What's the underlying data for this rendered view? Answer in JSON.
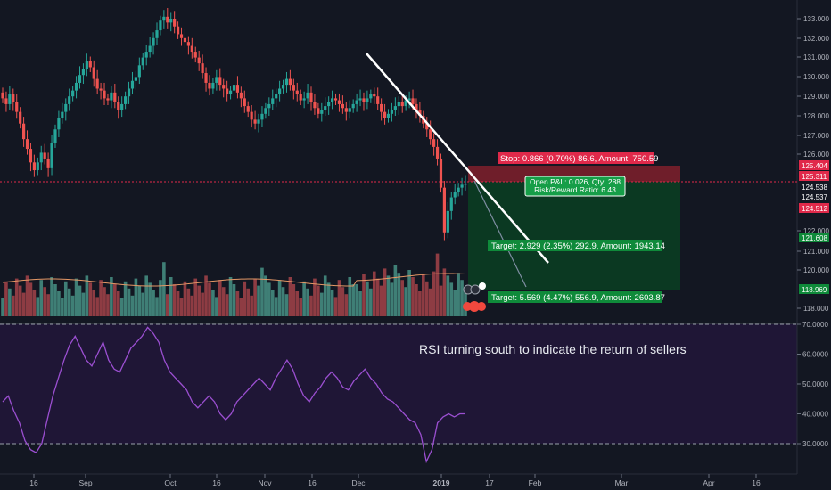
{
  "chart_data": [
    {
      "type": "candlestick",
      "title": "",
      "y_axis_ticks": [
        "133.000",
        "132.000",
        "131.000",
        "130.000",
        "129.000",
        "128.000",
        "127.000",
        "126.000",
        "122.000",
        "121.000",
        "120.000",
        "118.000"
      ],
      "price_labels": [
        {
          "text": "125.404",
          "color": "#e0294a"
        },
        {
          "text": "125.311",
          "color": "#e0294a"
        },
        {
          "text": "124.538",
          "color": "#131722"
        },
        {
          "text": "124.537",
          "color": "#131722"
        },
        {
          "text": "124.512",
          "color": "#e0294a"
        },
        {
          "text": "121.608",
          "color": "#0f8a3a"
        },
        {
          "text": "118.969",
          "color": "#0f8a3a"
        }
      ],
      "x_axis_ticks": [
        "16",
        "Sep",
        "Oct",
        "16",
        "Nov",
        "16",
        "Dec",
        "2019",
        "17",
        "Feb",
        "Mar",
        "Apr",
        "16"
      ],
      "closes": [
        128.9,
        128.6,
        129.1,
        128.7,
        128.2,
        127.6,
        126.8,
        126.3,
        125.6,
        125.2,
        125.6,
        126.1,
        125.8,
        125.3,
        126.6,
        127.3,
        127.9,
        128.2,
        128.6,
        129.0,
        129.3,
        129.7,
        130.1,
        130.4,
        130.8,
        130.5,
        129.9,
        129.4,
        129.3,
        128.9,
        128.8,
        129.2,
        128.7,
        128.3,
        128.6,
        129.0,
        129.4,
        129.8,
        130.0,
        130.6,
        131.0,
        131.3,
        131.6,
        132.0,
        132.4,
        132.9,
        133.1,
        132.8,
        133.0,
        132.6,
        132.2,
        132.0,
        131.8,
        131.6,
        131.3,
        131.0,
        130.7,
        130.2,
        129.7,
        129.4,
        129.7,
        130.0,
        129.6,
        129.4,
        129.1,
        129.3,
        129.6,
        129.2,
        128.9,
        128.5,
        128.2,
        127.8,
        127.6,
        127.8,
        128.1,
        128.4,
        128.6,
        128.9,
        129.1,
        129.4,
        129.6,
        129.9,
        129.6,
        129.3,
        129.1,
        128.8,
        128.9,
        129.2,
        128.7,
        128.4,
        128.1,
        128.3,
        128.5,
        128.7,
        128.9,
        128.8,
        128.6,
        128.4,
        128.2,
        128.4,
        128.6,
        128.8,
        128.9,
        128.7,
        128.9,
        129.1,
        129.0,
        128.6,
        128.2,
        127.9,
        128.1,
        128.3,
        128.5,
        128.7,
        128.5,
        128.8,
        128.9,
        128.6,
        128.3,
        128.0,
        127.6,
        127.3,
        126.8,
        126.4,
        125.8,
        124.3,
        122.0,
        123.1,
        123.8,
        124.1,
        124.3,
        124.45,
        124.5
      ],
      "volume_scale_note": "",
      "rsi_ticks": [
        "70.0000",
        "60.0000",
        "50.0000",
        "40.0000",
        "30.0000"
      ],
      "rsi_overbought": 70,
      "rsi_oversold": 30,
      "rsi_values": [
        44,
        46,
        41,
        37,
        31,
        28,
        27,
        30,
        38,
        46,
        52,
        58,
        63,
        66,
        62,
        58,
        56,
        60,
        64,
        58,
        55,
        54,
        58,
        62,
        64,
        66,
        69,
        67,
        64,
        58,
        54,
        52,
        50,
        48,
        44,
        42,
        44,
        46,
        44,
        40,
        38,
        40,
        44,
        46,
        48,
        50,
        52,
        50,
        48,
        52,
        55,
        58,
        55,
        50,
        46,
        44,
        47,
        49,
        52,
        54,
        52,
        49,
        48,
        51,
        53,
        55,
        52,
        50,
        47,
        45,
        44,
        42,
        40,
        38,
        37,
        33,
        24,
        28,
        37,
        39,
        40,
        39,
        40,
        40
      ],
      "annotation": "RSI turning south to indicate the return of sellers",
      "position_labels": {
        "stop": "Stop: 0.866 (0.70%) 86.6, Amount: 750.59",
        "open": "Open P&L: 0.026, Qty: 288",
        "rr": "Risk/Reward Ratio: 6.43",
        "target1": "Target: 2.929 (2.35%) 292.9, Amount: 1943.14",
        "target2": "Target: 5.569 (4.47%) 556.9, Amount: 2603.87"
      },
      "colors": {
        "background": "#131722",
        "up": "#26a69a",
        "down": "#ef5350",
        "volume_up": "#3f7f76",
        "volume_down": "#8e3c43",
        "trendline": "#ffffff",
        "rsi": "#9b4fd1",
        "rsi_band": "#2a1d48",
        "stop_zone": "#7a1f2b",
        "target_zone": "#0b3d22"
      }
    }
  ]
}
